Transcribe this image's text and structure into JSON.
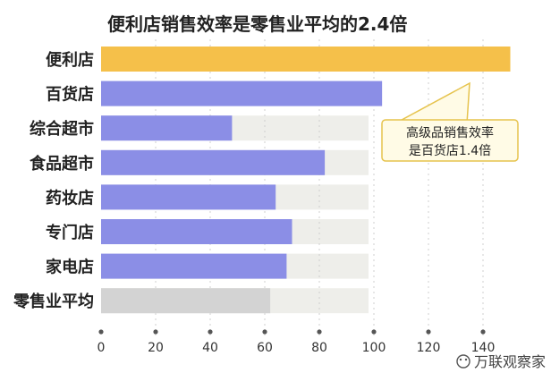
{
  "chart_data": {
    "type": "bar",
    "orientation": "horizontal",
    "title": "便利店销售效率是零售业平均的2.4倍",
    "xlabel": "",
    "ylabel": "",
    "categories": [
      "便利店",
      "百货店",
      "综合超市",
      "食品超市",
      "药妆店",
      "专门店",
      "家电店",
      "零售业平均"
    ],
    "values": [
      150,
      103,
      48,
      82,
      64,
      70,
      68,
      62
    ],
    "xlim": [
      0,
      150
    ],
    "xticks": [
      0,
      20,
      40,
      60,
      80,
      100,
      120,
      140
    ],
    "grid": true,
    "legend": "none",
    "annotation": {
      "lines": [
        "高级品销售效率",
        "是百货店1.4倍"
      ]
    },
    "colors": {
      "highlight": "#f5c04a",
      "default": "#8b8ee6",
      "average": "#d3d3d3",
      "band": "#eeeeea",
      "title": "#222222",
      "label": "#222222",
      "tick": "#333333"
    }
  },
  "watermark": "万联观察家"
}
